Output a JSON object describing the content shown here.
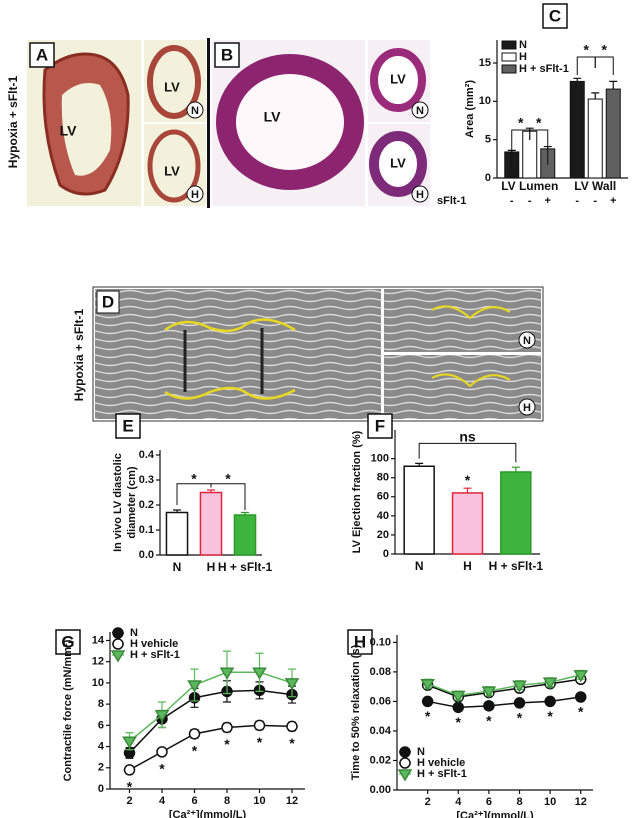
{
  "images": {
    "side_label_top": "Hypoxia + sFlt-1",
    "A": {
      "label": "A",
      "main": "LV",
      "small": [
        {
          "lv": "LV",
          "tag": "N"
        },
        {
          "lv": "LV",
          "tag": "H"
        }
      ]
    },
    "B": {
      "label": "B",
      "main": "LV",
      "small": [
        {
          "lv": "LV",
          "tag": "N"
        },
        {
          "lv": "LV",
          "tag": "H"
        }
      ]
    },
    "D": {
      "label": "D",
      "side_label": "Hypoxia + sFlt-1",
      "small": [
        "N",
        "H"
      ]
    }
  },
  "chart_data": [
    {
      "type": "bar",
      "panel": "C",
      "ylabel": [
        "Area (mm²)"
      ],
      "categories": [
        "LV Lumen",
        "LV Wall"
      ],
      "series": [
        {
          "name": "N",
          "color": "#1a1a1a",
          "values": [
            3.4,
            12.6
          ],
          "errors": [
            0.2,
            0.4
          ]
        },
        {
          "name": "H",
          "color": "#ffffff",
          "values": [
            6.1,
            10.3
          ],
          "errors": [
            0.4,
            0.8
          ]
        },
        {
          "name": "H + sFlt-1",
          "color": "#606060",
          "values": [
            3.8,
            11.6
          ],
          "errors": [
            0.3,
            1.0
          ]
        }
      ],
      "ylim": [
        0,
        18
      ],
      "yticks": [
        0,
        5,
        10,
        15
      ],
      "legend": "upper left",
      "treatment_row": {
        "label": "sFlt-1",
        "signs": [
          "-",
          "-",
          "+",
          "-",
          "-",
          "+"
        ]
      },
      "annotations": [
        "*",
        "*",
        "*",
        "*"
      ]
    },
    {
      "type": "bar",
      "panel": "E",
      "ylabel": [
        "In vivo LV diastolic",
        "diameter (cm)"
      ],
      "categories": [
        "N",
        "H",
        "H + sFlt-1"
      ],
      "values": [
        0.17,
        0.25,
        0.16
      ],
      "errors": [
        0.01,
        0.01,
        0.01
      ],
      "colors": [
        "#ffffff",
        "#f9c3df",
        "#3db43d"
      ],
      "edgecolors": [
        "#111111",
        "#e0253a",
        "#2a9a2a"
      ],
      "ylim": [
        0,
        0.42
      ],
      "yticks": [
        {
          "value": 0,
          "label": "0.0"
        },
        0.1,
        0.2,
        0.3,
        0.4
      ],
      "annotations": [
        "*",
        "*"
      ]
    },
    {
      "type": "bar",
      "panel": "F",
      "ylabel": [
        "LV Ejection fraction (%)"
      ],
      "categories": [
        "N",
        "H",
        "H + sFlt-1"
      ],
      "values": [
        92,
        64,
        86
      ],
      "errors": [
        3,
        5,
        5
      ],
      "colors": [
        "#ffffff",
        "#f9c3df",
        "#3db43d"
      ],
      "edgecolors": [
        "#111111",
        "#e0253a",
        "#2a9a2a"
      ],
      "ylim": [
        0,
        130
      ],
      "yticks": [
        0,
        20,
        40,
        60,
        80,
        100
      ],
      "annotations": [
        "ns",
        "*"
      ]
    },
    {
      "type": "line",
      "panel": "G",
      "ylabel": [
        "Contractile force (mN/mm²)"
      ],
      "xlabel": "[Ca²⁺](mmol/L)",
      "x": [
        2,
        4,
        6,
        8,
        10,
        12
      ],
      "xlim": [
        0.8,
        12.8
      ],
      "xticks": [
        2,
        4,
        6,
        8,
        10,
        12
      ],
      "ylim": [
        0,
        14.8
      ],
      "yticks": [
        0,
        2,
        4,
        6,
        8,
        10,
        12,
        14
      ],
      "legend": "upper left",
      "series": [
        {
          "name": "N",
          "color": "#111111",
          "marker": "circle",
          "facecolor": "#111111",
          "values": [
            3.4,
            6.6,
            8.6,
            9.2,
            9.3,
            8.9
          ],
          "errors": [
            0.5,
            0.8,
            0.9,
            1.0,
            0.8,
            0.8
          ]
        },
        {
          "name": "H vehicle",
          "color": "#111111",
          "marker": "circle",
          "facecolor": "#ffffff",
          "values": [
            1.8,
            3.5,
            5.2,
            5.8,
            6.0,
            5.9
          ],
          "errors": [
            0.3,
            0.3,
            0.4,
            0.4,
            0.4,
            0.4
          ]
        },
        {
          "name": "H + sFlt-1",
          "color": "#5cb85c",
          "marker": "triangle",
          "facecolor": "#5cb85c",
          "values": [
            4.5,
            7.0,
            9.8,
            11.0,
            11.0,
            10.0
          ],
          "errors": [
            0.8,
            1.2,
            1.5,
            2.0,
            1.8,
            1.3
          ]
        }
      ],
      "annotations": [
        "*",
        "*",
        "*",
        "*",
        "*",
        "*"
      ]
    },
    {
      "type": "line",
      "panel": "H",
      "ylabel": [
        "Time to 50% relaxation (s)"
      ],
      "xlabel": "[Ca²⁺](mmol/L)",
      "x": [
        2,
        4,
        6,
        8,
        10,
        12
      ],
      "xlim": [
        0,
        12.8
      ],
      "xticks": [
        2,
        4,
        6,
        8,
        10,
        12
      ],
      "ylim": [
        0,
        0.105
      ],
      "yticks": [
        {
          "value": 0,
          "label": "0.00"
        },
        {
          "value": 0.02,
          "label": "0.02"
        },
        {
          "value": 0.04,
          "label": "0.04"
        },
        {
          "value": 0.06,
          "label": "0.06"
        },
        {
          "value": 0.08,
          "label": "0.08"
        },
        {
          "value": 0.1,
          "label": "0.10"
        }
      ],
      "legend": "lower left",
      "series": [
        {
          "name": "N",
          "color": "#111111",
          "marker": "circle",
          "facecolor": "#111111",
          "values": [
            0.06,
            0.056,
            0.057,
            0.059,
            0.06,
            0.063
          ],
          "errors": [
            0.002,
            0.002,
            0.002,
            0.002,
            0.002,
            0.002
          ]
        },
        {
          "name": "H vehicle",
          "color": "#111111",
          "marker": "circle",
          "facecolor": "#ffffff",
          "values": [
            0.071,
            0.063,
            0.066,
            0.069,
            0.072,
            0.075
          ],
          "errors": [
            0.002,
            0.002,
            0.002,
            0.002,
            0.002,
            0.002
          ]
        },
        {
          "name": "H + sFlt-1",
          "color": "#5cb85c",
          "marker": "triangle",
          "facecolor": "#5cb85c",
          "values": [
            0.072,
            0.064,
            0.067,
            0.071,
            0.073,
            0.078
          ],
          "errors": [
            0.003,
            0.003,
            0.003,
            0.003,
            0.003,
            0.003
          ]
        }
      ],
      "annotations": [
        "*",
        "*",
        "*",
        "*",
        "*",
        "*"
      ]
    }
  ]
}
